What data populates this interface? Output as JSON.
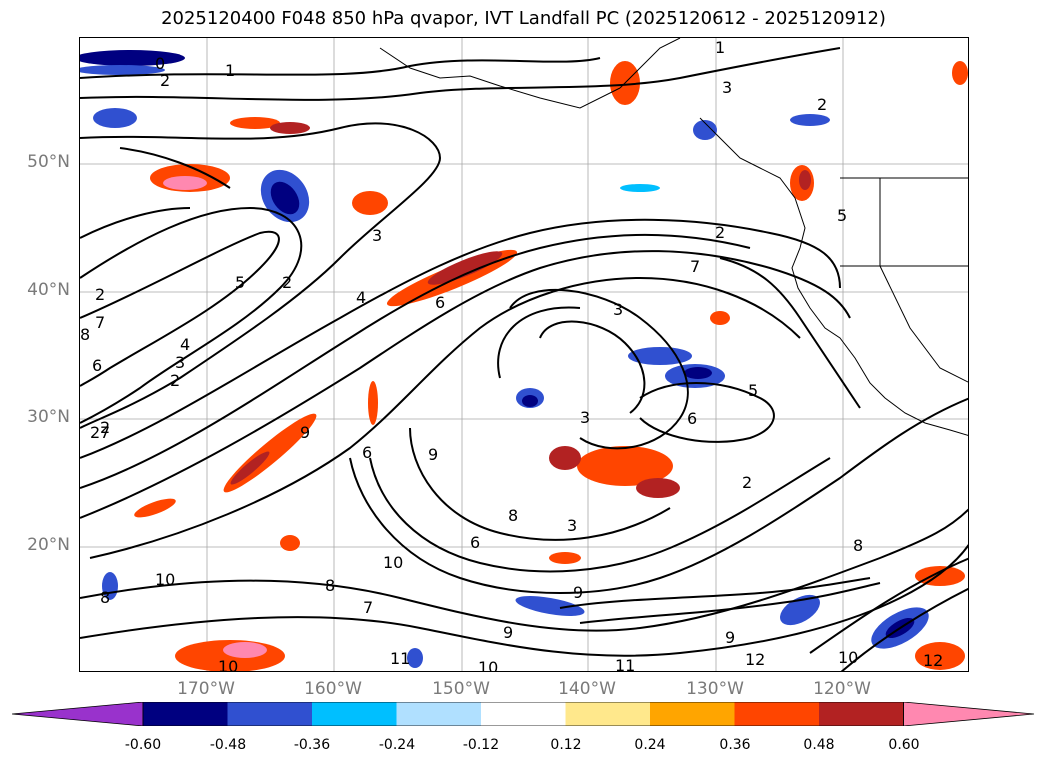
{
  "title": "2025120400 F048 850 hPa qvapor, IVT Landfall PC (2025120612 - 2025120912)",
  "axes": {
    "lat_labels": [
      "50°N",
      "40°N",
      "30°N",
      "20°N"
    ],
    "lon_labels": [
      "170°W",
      "160°W",
      "150°W",
      "140°W",
      "130°W",
      "120°W"
    ],
    "gridlines": true
  },
  "contour_labels": [
    "0",
    "2",
    "1",
    "1",
    "3",
    "2",
    "3",
    "2",
    "5",
    "7",
    "2",
    "6",
    "7",
    "4",
    "5",
    "2",
    "8",
    "6",
    "3",
    "2",
    "3",
    "4",
    "6",
    "5",
    "3",
    "7",
    "2",
    "8",
    "2",
    "9",
    "6",
    "2",
    "9",
    "10",
    "8",
    "7",
    "10",
    "9",
    "9",
    "3",
    "8",
    "6",
    "10",
    "11",
    "10",
    "12",
    "11",
    "9",
    "10",
    "12",
    "8"
  ],
  "colorbar": {
    "levels": [
      "-0.60",
      "-0.48",
      "-0.36",
      "-0.24",
      "-0.12",
      "0.12",
      "0.24",
      "0.36",
      "0.48",
      "0.60"
    ],
    "colors": [
      "#9932cc",
      "#000080",
      "#3050d0",
      "#00bfff",
      "#b0e0ff",
      "#ffffff",
      "#ffe88c",
      "#ffa500",
      "#ff4500",
      "#b22222",
      "#ff88b0"
    ]
  }
}
